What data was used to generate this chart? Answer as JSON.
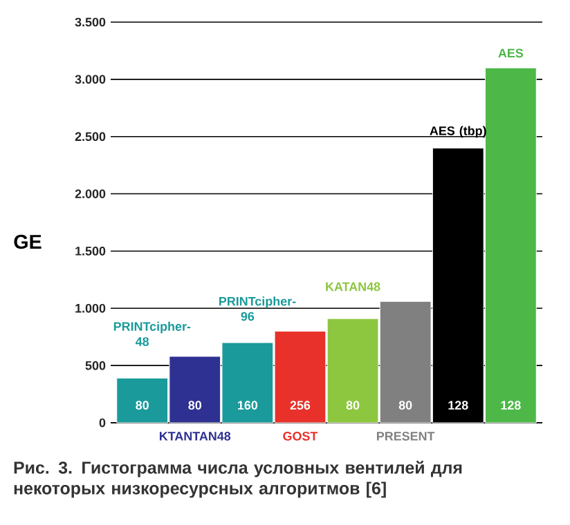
{
  "chart_data": {
    "type": "bar",
    "ylabel": "GE",
    "categories": [
      "PRINTcipher-48",
      "KTANTAN48",
      "PRINTcipher-96",
      "GOST",
      "KATAN48",
      "PRESENT",
      "AES (tbp)",
      "AES"
    ],
    "values": [
      390,
      580,
      700,
      800,
      910,
      1060,
      2400,
      3100
    ],
    "colors": [
      "#1a9a9a",
      "#2e3192",
      "#1a9a9a",
      "#e8312a",
      "#8dc63f",
      "#808080",
      "#000000",
      "#4db848"
    ],
    "ylim": [
      0,
      3500
    ],
    "yticks": [
      0,
      500,
      {
        "value": 1000,
        "label": "1.000"
      },
      {
        "value": 1500,
        "label": "1.500"
      },
      {
        "value": 2000,
        "label": "2.000"
      },
      {
        "value": 2500,
        "label": "2.500"
      },
      {
        "value": 3000,
        "label": "3.000"
      },
      {
        "value": 3500,
        "label": "3.500"
      }
    ],
    "grid": "y",
    "annotations": [
      "Рис. 3. Гистограмма числа условных вентилей для некоторых низкоресурсных алгоритмов [6]",
      "80",
      "80",
      "160",
      "256",
      "80",
      "80",
      "128",
      "128"
    ]
  }
}
